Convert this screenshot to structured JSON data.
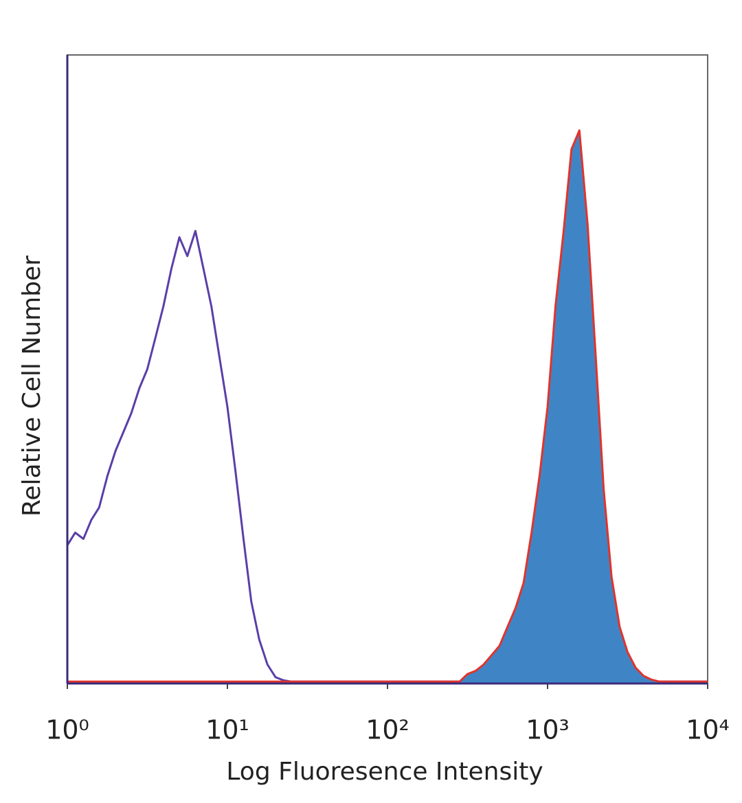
{
  "chart_data": {
    "type": "histogram-overlay",
    "xlabel": "Log Fluoresence Intensity",
    "ylabel": "Relative Cell Number",
    "xscale": "log",
    "xlim": [
      1,
      10000
    ],
    "ylim": [
      0,
      100
    ],
    "xticks": [
      {
        "value": 1,
        "label": "10⁰"
      },
      {
        "value": 10,
        "label": "10¹"
      },
      {
        "value": 100,
        "label": "10²"
      },
      {
        "value": 1000,
        "label": "10³"
      },
      {
        "value": 10000,
        "label": "10⁴"
      }
    ],
    "x": [
      1,
      1.12,
      1.26,
      1.41,
      1.58,
      1.78,
      2,
      2.24,
      2.51,
      2.82,
      3.16,
      3.55,
      3.98,
      4.47,
      5.01,
      5.62,
      6.31,
      7.08,
      7.94,
      8.91,
      10,
      11.2,
      12.6,
      14.1,
      15.8,
      17.8,
      20,
      22.4,
      25.1,
      28.2,
      31.6,
      35.5,
      39.8,
      44.7,
      50.1,
      56.2,
      63.1,
      70.8,
      79.4,
      89.1,
      100,
      112,
      126,
      141,
      158,
      178,
      200,
      224,
      251,
      282,
      316,
      355,
      398,
      447,
      501,
      562,
      631,
      708,
      794,
      891,
      1000,
      1120,
      1260,
      1410,
      1580,
      1780,
      2000,
      2240,
      2510,
      2820,
      3160,
      3550,
      3980,
      4470,
      5010,
      5620,
      6310,
      7080,
      7940,
      8910,
      10000
    ],
    "series": [
      {
        "color": "#5a3ea8",
        "fill": null,
        "values": [
          22,
          24,
          23,
          26,
          28,
          33,
          37,
          40,
          43,
          47,
          50,
          55,
          60,
          66,
          71,
          68,
          72,
          66,
          60,
          52,
          44,
          34,
          23,
          13,
          7,
          3,
          1,
          0.5,
          0.3,
          0.3,
          0.3,
          0.3,
          0.3,
          0.3,
          0.3,
          0.3,
          0.3,
          0.3,
          0.3,
          0.3,
          0.3,
          0.3,
          0.3,
          0.3,
          0.3,
          0.3,
          0.3,
          0.3,
          0.3,
          0.3,
          0.3,
          0.3,
          0.3,
          0.3,
          0.3,
          0.3,
          0.3,
          0.3,
          0.3,
          0.3,
          0.3,
          0.3,
          0.3,
          0.3,
          0.3,
          0.3,
          0.3,
          0.3,
          0.3,
          0.3,
          0.3,
          0.3,
          0.3,
          0.3,
          0.3,
          0.3,
          0.3,
          0.3,
          0.3,
          0.3,
          0.3
        ]
      },
      {
        "color": "#e0342c",
        "fill": "#3f85c6",
        "values": [
          0.3,
          0.3,
          0.3,
          0.3,
          0.3,
          0.3,
          0.3,
          0.3,
          0.3,
          0.3,
          0.3,
          0.3,
          0.3,
          0.3,
          0.3,
          0.3,
          0.3,
          0.3,
          0.3,
          0.3,
          0.3,
          0.3,
          0.3,
          0.3,
          0.3,
          0.3,
          0.3,
          0.3,
          0.3,
          0.3,
          0.3,
          0.3,
          0.3,
          0.3,
          0.3,
          0.3,
          0.3,
          0.3,
          0.3,
          0.3,
          0.3,
          0.3,
          0.3,
          0.3,
          0.3,
          0.3,
          0.3,
          0.3,
          0.3,
          0.3,
          1.5,
          2,
          3,
          4.5,
          6,
          9,
          12,
          16,
          24,
          33,
          44,
          60,
          72,
          85,
          88,
          73,
          52,
          31,
          17,
          9,
          5,
          2.5,
          1.2,
          0.6,
          0.3,
          0.3,
          0.3,
          0.3,
          0.3,
          0.3,
          0.3
        ]
      }
    ]
  }
}
